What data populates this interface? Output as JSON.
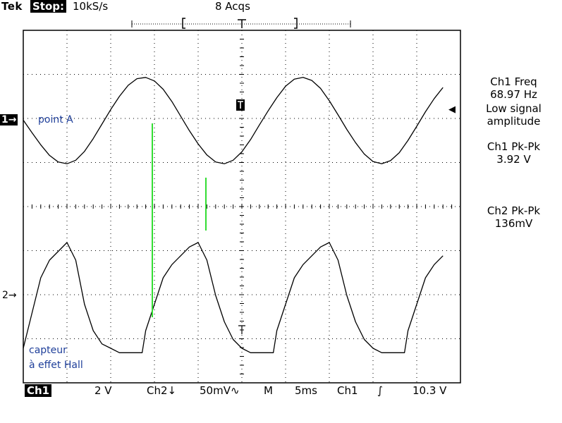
{
  "header": {
    "brand": "Tek",
    "state": "Stop:",
    "sample_rate": "10kS/s",
    "acquisitions": "8 Acqs"
  },
  "readouts": {
    "ch1_freq_title": "Ch1 Freq",
    "ch1_freq_value": "68.97 Hz",
    "ch1_freq_note_1": "Low signal",
    "ch1_freq_note_2": "amplitude",
    "ch1_pkpk_title": "Ch1 Pk-Pk",
    "ch1_pkpk_value": "3.92 V",
    "ch2_pkpk_title": "Ch2 Pk-Pk",
    "ch2_pkpk_value": "136mV"
  },
  "markers": {
    "ch1": "1→",
    "ch2": "2→",
    "trigger_level": "◀"
  },
  "annotations": {
    "point_a": "point A",
    "hall_line1": "capteur",
    "hall_line2": "à effet Hall"
  },
  "footer": {
    "ch1_label": "Ch1",
    "ch1_scale": "2 V",
    "ch2_label": "Ch2↓",
    "ch2_scale": "50mV∿",
    "mode": "M",
    "timebase": "5ms",
    "trig_source": "Ch1",
    "trig_slope": "∫",
    "trig_level": "10.3 V"
  },
  "colors": {
    "trace": "#000000",
    "grid": "#000000",
    "cursor": "#33dd33",
    "annotation": "#1f3f9a"
  },
  "chart_data": {
    "type": "line",
    "title": "",
    "xlabel": "",
    "ylabel": "",
    "x_unit": "ms",
    "xlim": [
      0,
      50
    ],
    "timebase_ms_per_div": 5,
    "grid": true,
    "series": [
      {
        "name": "Ch1",
        "volts_per_div": 2,
        "x": [
          0,
          1,
          2,
          3,
          4,
          5,
          6,
          7,
          8,
          9,
          10,
          11,
          12,
          13,
          14,
          15,
          16,
          17,
          18,
          19,
          20,
          21,
          22,
          23,
          24,
          25,
          26,
          27,
          28,
          29,
          30,
          31,
          32,
          33,
          34,
          35,
          36,
          37,
          38,
          39,
          40,
          41,
          42,
          43,
          44,
          45,
          46,
          47,
          48
        ],
        "values": [
          0.02,
          -0.55,
          -1.1,
          -1.58,
          -1.88,
          -1.96,
          -1.8,
          -1.4,
          -0.82,
          -0.16,
          0.5,
          1.1,
          1.6,
          1.9,
          1.96,
          1.8,
          1.42,
          0.86,
          0.2,
          -0.46,
          -1.06,
          -1.56,
          -1.88,
          -1.96,
          -1.8,
          -1.42,
          -0.86,
          -0.2,
          0.44,
          1.04,
          1.56,
          1.88,
          1.96,
          1.82,
          1.46,
          0.9,
          0.26,
          -0.4,
          -1.0,
          -1.52,
          -1.86,
          -1.96,
          -1.82,
          -1.46,
          -0.9,
          -0.26,
          0.4,
          1.0,
          1.5
        ]
      },
      {
        "name": "Ch2",
        "volts_per_div": 0.05,
        "x": [
          0,
          1,
          2,
          3,
          4,
          5,
          6,
          7,
          8,
          9,
          10,
          11,
          12,
          13,
          13.6,
          14,
          15,
          16,
          17,
          18,
          19,
          20,
          21,
          22,
          23,
          24,
          25,
          26,
          27,
          28,
          28.6,
          29,
          30,
          31,
          32,
          33,
          34,
          35,
          36,
          37,
          38,
          39,
          40,
          41,
          42,
          43,
          43.6,
          44,
          45,
          46,
          47,
          48
        ],
        "values": [
          -0.06,
          -0.02,
          0.02,
          0.04,
          0.05,
          0.06,
          0.04,
          -0.01,
          -0.04,
          -0.055,
          -0.06,
          -0.065,
          -0.065,
          -0.065,
          -0.065,
          -0.04,
          -0.01,
          0.02,
          0.035,
          0.045,
          0.055,
          0.06,
          0.04,
          0.0,
          -0.03,
          -0.05,
          -0.06,
          -0.065,
          -0.065,
          -0.065,
          -0.065,
          -0.04,
          -0.01,
          0.02,
          0.035,
          0.045,
          0.055,
          0.06,
          0.04,
          0.0,
          -0.03,
          -0.05,
          -0.06,
          -0.065,
          -0.065,
          -0.065,
          -0.065,
          -0.04,
          -0.01,
          0.02,
          0.035,
          0.045
        ]
      }
    ]
  }
}
